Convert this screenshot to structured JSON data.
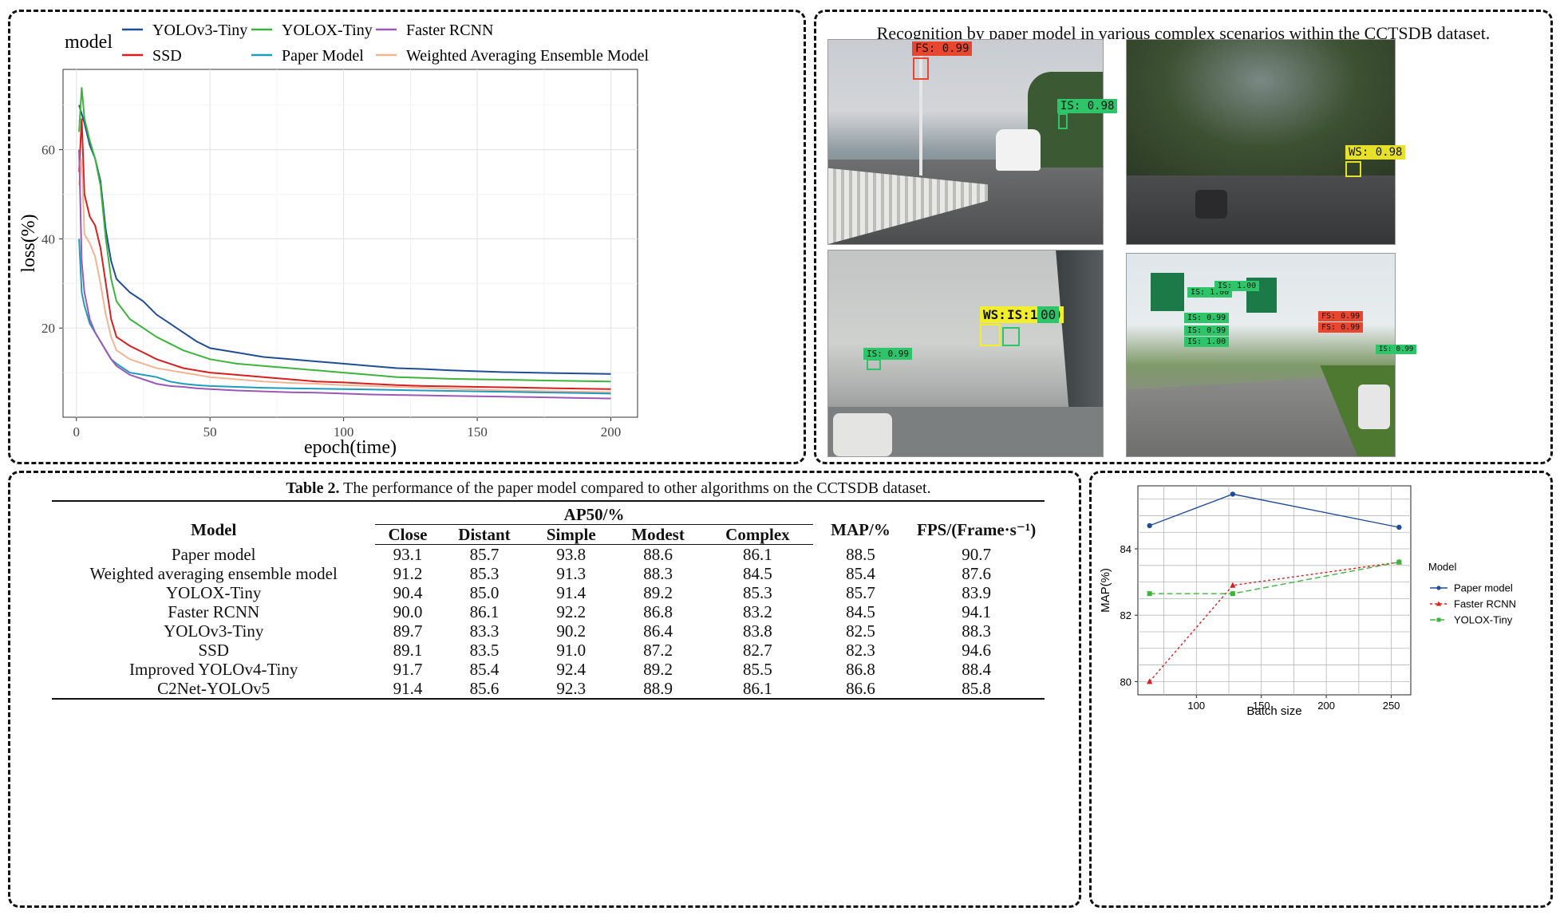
{
  "loss_chart": {
    "legend_title": "model",
    "legend": [
      {
        "name": "YOLOv3-Tiny",
        "color": "#1f4e96"
      },
      {
        "name": "SSD",
        "color": "#d62020"
      },
      {
        "name": "YOLOX-Tiny",
        "color": "#3cb43c"
      },
      {
        "name": "Paper Model",
        "color": "#1f9bbd"
      },
      {
        "name": "Faster RCNN",
        "color": "#9b59b6"
      },
      {
        "name": "Weighted Averaging Ensemble Model",
        "color": "#f4b393"
      }
    ],
    "xlabel": "epoch(time)",
    "ylabel": "loss(%)",
    "xticks": [
      "0",
      "50",
      "100",
      "150",
      "200"
    ],
    "yticks": [
      "20",
      "40",
      "60"
    ]
  },
  "photos": {
    "title": "Recognition by paper model in various complex scenarios within the CCTSDB dataset.",
    "labels": [
      {
        "text": "FS: 0.99",
        "bg": "#e8462e"
      },
      {
        "text": "IS: 0.98",
        "bg": "#2ec46a"
      },
      {
        "text": "WS: 0.98",
        "bg": "#e6e02a"
      },
      {
        "text": "WS:",
        "bg": "#f2ee2c"
      },
      {
        "text": "IS:1.00",
        "bg": "#f2ee2c"
      },
      {
        "text": "00",
        "bg": "#2ec46a"
      },
      {
        "text": "IS: 0.99",
        "bg": "#2ec46a"
      },
      {
        "text": "IS: 1.00",
        "bg": "#2ec46a"
      },
      {
        "text": "IS: 1.00",
        "bg": "#2ec46a"
      },
      {
        "text": "IS: 0.99",
        "bg": "#2ec46a"
      },
      {
        "text": "IS: 0.99",
        "bg": "#2ec46a"
      },
      {
        "text": "IS: 1.00",
        "bg": "#2ec46a"
      },
      {
        "text": "FS: 0.99",
        "bg": "#e8462e"
      },
      {
        "text": "FS: 0.99",
        "bg": "#e8462e"
      },
      {
        "text": "IS: 0.99",
        "bg": "#2ec46a"
      }
    ]
  },
  "table": {
    "caption_bold": "Table 2.",
    "caption_rest": " The performance of the paper model compared to other algorithms on the CCTSDB dataset.",
    "col_model": "Model",
    "col_ap": "AP50/%",
    "sub_cols": [
      "Close",
      "Distant",
      "Simple",
      "Modest",
      "Complex"
    ],
    "col_map": "MAP/%",
    "col_fps": "FPS/(Frame·s⁻¹)",
    "rows": [
      {
        "model": "Paper model",
        "vals": [
          "93.1",
          "85.7",
          "93.8",
          "88.6",
          "86.1",
          "88.5",
          "90.7"
        ]
      },
      {
        "model": "Weighted averaging ensemble model",
        "vals": [
          "91.2",
          "85.3",
          "91.3",
          "88.3",
          "84.5",
          "85.4",
          "87.6"
        ]
      },
      {
        "model": "YOLOX-Tiny",
        "vals": [
          "90.4",
          "85.0",
          "91.4",
          "89.2",
          "85.3",
          "85.7",
          "83.9"
        ]
      },
      {
        "model": "Faster RCNN",
        "vals": [
          "90.0",
          "86.1",
          "92.2",
          "86.8",
          "83.2",
          "84.5",
          "94.1"
        ]
      },
      {
        "model": "YOLOv3-Tiny",
        "vals": [
          "89.7",
          "83.3",
          "90.2",
          "86.4",
          "83.8",
          "82.5",
          "88.3"
        ]
      },
      {
        "model": "SSD",
        "vals": [
          "89.1",
          "83.5",
          "91.0",
          "87.2",
          "82.7",
          "82.3",
          "94.6"
        ]
      },
      {
        "model": "Improved YOLOv4-Tiny",
        "vals": [
          "91.7",
          "85.4",
          "92.4",
          "89.2",
          "85.5",
          "86.8",
          "88.4"
        ]
      },
      {
        "model": "C2Net-YOLOv5",
        "vals": [
          "91.4",
          "85.6",
          "92.3",
          "88.9",
          "86.1",
          "86.6",
          "85.8"
        ]
      }
    ]
  },
  "chart_data": [
    {
      "type": "line",
      "xlabel": "epoch(time)",
      "ylabel": "loss(%)",
      "xlim": [
        -5,
        210
      ],
      "ylim": [
        0,
        78
      ],
      "grid": true,
      "legend_placement": "top",
      "series": [
        {
          "name": "YOLOv3-Tiny",
          "color": "#1f4e96",
          "x": [
            1,
            3,
            5,
            7,
            9,
            11,
            13,
            15,
            20,
            25,
            30,
            35,
            40,
            45,
            50,
            60,
            70,
            80,
            90,
            100,
            110,
            120,
            130,
            140,
            150,
            160,
            170,
            180,
            190,
            200
          ],
          "y": [
            70,
            66,
            61,
            58,
            53,
            42,
            35,
            31,
            28,
            26,
            23,
            21,
            19,
            17,
            15.5,
            14.5,
            13.5,
            13,
            12.5,
            12,
            11.5,
            11,
            10.8,
            10.5,
            10.3,
            10.1,
            10,
            9.9,
            9.8,
            9.7
          ]
        },
        {
          "name": "YOLOX-Tiny",
          "color": "#3cb43c",
          "x": [
            1,
            2,
            3,
            5,
            7,
            9,
            11,
            13,
            15,
            20,
            25,
            30,
            35,
            40,
            45,
            50,
            60,
            70,
            80,
            90,
            100,
            110,
            120,
            130,
            140,
            150,
            160,
            170,
            180,
            190,
            200
          ],
          "y": [
            64,
            74,
            67,
            62,
            58,
            52,
            40,
            31,
            26,
            22,
            20,
            18,
            16.5,
            15,
            14,
            13,
            12,
            11.5,
            11,
            10.5,
            10,
            9.5,
            9,
            8.8,
            8.6,
            8.5,
            8.4,
            8.3,
            8.2,
            8.1,
            8
          ]
        },
        {
          "name": "SSD",
          "color": "#d62020",
          "x": [
            1,
            2,
            3,
            5,
            7,
            9,
            11,
            13,
            15,
            20,
            25,
            30,
            35,
            40,
            45,
            50,
            60,
            70,
            80,
            90,
            100,
            110,
            120,
            130,
            140,
            150,
            160,
            170,
            180,
            190,
            200
          ],
          "y": [
            55,
            67,
            50,
            45,
            43,
            38,
            30,
            22,
            18,
            16,
            14.5,
            13,
            12,
            11,
            10.5,
            10,
            9.5,
            9,
            8.5,
            8,
            7.8,
            7.5,
            7.2,
            7,
            6.9,
            6.8,
            6.7,
            6.6,
            6.5,
            6.4,
            6.3
          ]
        },
        {
          "name": "Weighted Averaging Ensemble Model",
          "color": "#f4b393",
          "x": [
            1,
            2,
            3,
            5,
            7,
            9,
            11,
            13,
            15,
            20,
            25,
            30,
            35,
            40,
            45,
            50,
            60,
            70,
            80,
            90,
            100,
            110,
            120,
            130,
            140,
            150,
            160,
            170,
            180,
            190,
            200
          ],
          "y": [
            52,
            58,
            41,
            39,
            36,
            30,
            23,
            18,
            15,
            13,
            12,
            11,
            10.5,
            10,
            9.5,
            9,
            8.5,
            8,
            7.7,
            7.5,
            7.2,
            7,
            6.8,
            6.6,
            6.4,
            6.2,
            6,
            5.9,
            5.8,
            5.7,
            5.6
          ]
        },
        {
          "name": "Paper Model",
          "color": "#1f9bbd",
          "x": [
            1,
            2,
            3,
            5,
            7,
            9,
            11,
            13,
            15,
            20,
            25,
            30,
            35,
            40,
            45,
            50,
            60,
            70,
            80,
            90,
            100,
            110,
            120,
            130,
            140,
            150,
            160,
            170,
            180,
            190,
            200
          ],
          "y": [
            40,
            28,
            25,
            21,
            19,
            17,
            15,
            13,
            12,
            10,
            9.5,
            9,
            8,
            7.5,
            7.2,
            7,
            6.8,
            6.6,
            6.5,
            6.4,
            6.3,
            6.2,
            6.1,
            6,
            5.9,
            5.8,
            5.7,
            5.6,
            5.5,
            5.4,
            5.3
          ]
        },
        {
          "name": "Faster RCNN",
          "color": "#9b59b6",
          "x": [
            1,
            2,
            3,
            5,
            7,
            9,
            11,
            13,
            15,
            20,
            25,
            30,
            35,
            40,
            45,
            50,
            60,
            70,
            80,
            90,
            100,
            110,
            120,
            130,
            140,
            150,
            160,
            170,
            180,
            190,
            200
          ],
          "y": [
            60,
            35,
            28,
            22,
            19,
            17,
            15,
            13,
            11.5,
            9.5,
            8.5,
            7.5,
            7,
            6.8,
            6.5,
            6.3,
            6,
            5.8,
            5.6,
            5.5,
            5.3,
            5.1,
            5,
            4.9,
            4.8,
            4.7,
            4.6,
            4.5,
            4.4,
            4.3,
            4.2
          ]
        }
      ]
    },
    {
      "type": "line",
      "xlabel": "Batch size",
      "ylabel": "MAP(%)",
      "legend_title": "Model",
      "legend_placement": "right",
      "grid": true,
      "xlim": [
        55,
        265
      ],
      "ylim": [
        79.6,
        85.9
      ],
      "xticks": [
        100,
        150,
        200,
        250
      ],
      "yticks": [
        80,
        82,
        84
      ],
      "series": [
        {
          "name": "Paper model",
          "color": "#1f4e96",
          "style": "solid",
          "marker": "circle",
          "x": [
            64,
            128,
            256
          ],
          "y": [
            84.7,
            85.65,
            84.65
          ]
        },
        {
          "name": "Faster RCNN",
          "color": "#d62020",
          "style": "dotted",
          "marker": "triangle",
          "x": [
            64,
            128,
            256
          ],
          "y": [
            80,
            82.9,
            83.6
          ]
        },
        {
          "name": "YOLOX-Tiny",
          "color": "#3cb43c",
          "style": "dashed",
          "marker": "square",
          "x": [
            64,
            128,
            256
          ],
          "y": [
            82.65,
            82.65,
            83.6
          ]
        }
      ]
    }
  ]
}
